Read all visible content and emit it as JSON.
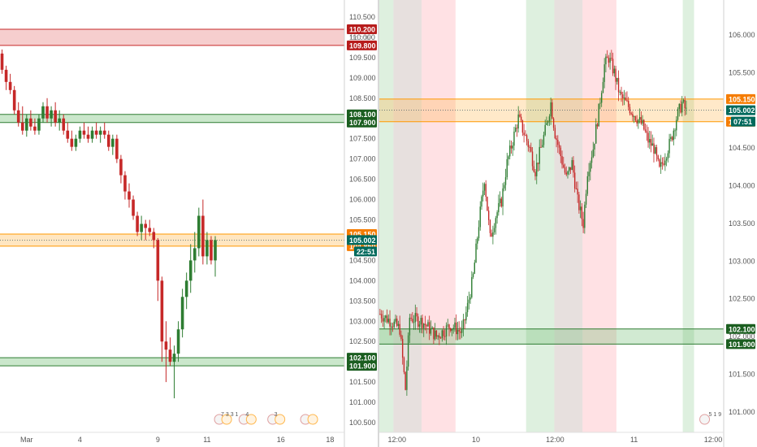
{
  "colors": {
    "bull": "#26a69a",
    "bear": "#ef5350",
    "candle_up": "#2e7d32",
    "candle_down": "#c62828",
    "supply_zone": "#e57373",
    "demand_zone": "#66bb6a",
    "pivot_zone": "#ffb74d",
    "supply_tag": "#b71c1c",
    "demand_tag": "#1b5e20",
    "pivot_tag": "#f57c00",
    "price_tag": "#00695c",
    "session_green": "#c8e6c9",
    "session_red": "#ffcdd2",
    "session_brown": "#d7ccc8",
    "axis_text": "#555555"
  },
  "chart_data": [
    {
      "type": "candlestick",
      "name": "left-panel",
      "y_ticks": [
        "110.500",
        "110.000",
        "109.500",
        "109.000",
        "108.500",
        "108.000",
        "107.500",
        "107.000",
        "106.500",
        "106.000",
        "105.500",
        "105.000",
        "104.500",
        "104.000",
        "103.500",
        "103.000",
        "102.500",
        "102.000",
        "101.500",
        "101.000",
        "100.500"
      ],
      "ylim": [
        100.3,
        110.8
      ],
      "x_ticks": [
        {
          "label": "Mar",
          "i": 6
        },
        {
          "label": "4",
          "i": 19
        },
        {
          "label": "9",
          "i": 38
        },
        {
          "label": "11",
          "i": 50
        },
        {
          "label": "16",
          "i": 68
        },
        {
          "label": "18",
          "i": 80
        }
      ],
      "n_slots": 84,
      "zones": [
        {
          "kind": "supply",
          "top": 110.2,
          "bottom": 109.8,
          "top_label": "110.200",
          "bottom_label": "109.800"
        },
        {
          "kind": "demand",
          "top": 108.1,
          "bottom": 107.9,
          "top_label": "108.100",
          "bottom_label": "107.900"
        },
        {
          "kind": "pivot",
          "top": 105.15,
          "bottom": 104.85,
          "top_label": "105.150",
          "bottom_label": "104.850"
        },
        {
          "kind": "demand",
          "top": 102.1,
          "bottom": 101.9,
          "top_label": "102.100",
          "bottom_label": "101.900"
        }
      ],
      "last_price": {
        "value": 105.002,
        "label": "105.002",
        "countdown": "22:51"
      },
      "faint_label": "110.000",
      "events": [
        {
          "i": 53,
          "text": "7 3 3 1"
        },
        {
          "i": 59,
          "text": "4"
        },
        {
          "i": 66,
          "text": "3"
        },
        {
          "i": 74,
          "text": ""
        }
      ],
      "candles": [
        {
          "o": 109.6,
          "h": 109.7,
          "l": 109.1,
          "c": 109.2
        },
        {
          "o": 109.2,
          "h": 109.3,
          "l": 108.7,
          "c": 108.9
        },
        {
          "o": 108.9,
          "h": 109.1,
          "l": 108.6,
          "c": 108.7
        },
        {
          "o": 108.7,
          "h": 108.8,
          "l": 108.1,
          "c": 108.2
        },
        {
          "o": 108.2,
          "h": 108.4,
          "l": 107.8,
          "c": 107.9
        },
        {
          "o": 107.9,
          "h": 108.3,
          "l": 107.6,
          "c": 107.7
        },
        {
          "o": 107.7,
          "h": 108.1,
          "l": 107.55,
          "c": 108.0
        },
        {
          "o": 108.0,
          "h": 108.2,
          "l": 107.7,
          "c": 107.8
        },
        {
          "o": 107.8,
          "h": 108.0,
          "l": 107.6,
          "c": 107.7
        },
        {
          "o": 107.7,
          "h": 108.1,
          "l": 107.6,
          "c": 108.0
        },
        {
          "o": 108.0,
          "h": 108.4,
          "l": 107.9,
          "c": 108.3
        },
        {
          "o": 108.3,
          "h": 108.5,
          "l": 107.9,
          "c": 108.0
        },
        {
          "o": 108.0,
          "h": 108.3,
          "l": 107.8,
          "c": 108.2
        },
        {
          "o": 108.2,
          "h": 108.4,
          "l": 107.8,
          "c": 107.9
        },
        {
          "o": 107.9,
          "h": 108.2,
          "l": 107.7,
          "c": 108.0
        },
        {
          "o": 108.0,
          "h": 108.1,
          "l": 107.6,
          "c": 107.7
        },
        {
          "o": 107.7,
          "h": 107.9,
          "l": 107.4,
          "c": 107.5
        },
        {
          "o": 107.5,
          "h": 107.7,
          "l": 107.2,
          "c": 107.3
        },
        {
          "o": 107.3,
          "h": 107.6,
          "l": 107.2,
          "c": 107.5
        },
        {
          "o": 107.5,
          "h": 107.8,
          "l": 107.4,
          "c": 107.7
        },
        {
          "o": 107.7,
          "h": 107.9,
          "l": 107.5,
          "c": 107.6
        },
        {
          "o": 107.6,
          "h": 107.8,
          "l": 107.4,
          "c": 107.5
        },
        {
          "o": 107.5,
          "h": 107.8,
          "l": 107.4,
          "c": 107.7
        },
        {
          "o": 107.7,
          "h": 107.9,
          "l": 107.5,
          "c": 107.6
        },
        {
          "o": 107.6,
          "h": 107.8,
          "l": 107.4,
          "c": 107.7
        },
        {
          "o": 107.7,
          "h": 107.9,
          "l": 107.5,
          "c": 107.6
        },
        {
          "o": 107.6,
          "h": 107.7,
          "l": 107.2,
          "c": 107.3
        },
        {
          "o": 107.3,
          "h": 107.6,
          "l": 107.1,
          "c": 107.5
        },
        {
          "o": 107.5,
          "h": 107.6,
          "l": 106.9,
          "c": 107.0
        },
        {
          "o": 107.0,
          "h": 107.1,
          "l": 106.4,
          "c": 106.6
        },
        {
          "o": 106.6,
          "h": 106.7,
          "l": 106.0,
          "c": 106.2
        },
        {
          "o": 106.2,
          "h": 106.4,
          "l": 105.8,
          "c": 106.0
        },
        {
          "o": 106.0,
          "h": 106.1,
          "l": 105.5,
          "c": 105.6
        },
        {
          "o": 105.6,
          "h": 105.7,
          "l": 105.1,
          "c": 105.2
        },
        {
          "o": 105.2,
          "h": 105.6,
          "l": 105.0,
          "c": 105.4
        },
        {
          "o": 105.4,
          "h": 105.5,
          "l": 105.0,
          "c": 105.3
        },
        {
          "o": 105.3,
          "h": 105.5,
          "l": 105.1,
          "c": 105.2
        },
        {
          "o": 105.2,
          "h": 105.3,
          "l": 104.8,
          "c": 105.0
        },
        {
          "o": 105.0,
          "h": 105.05,
          "l": 103.5,
          "c": 104.0
        },
        {
          "o": 104.0,
          "h": 104.1,
          "l": 102.0,
          "c": 102.5
        },
        {
          "o": 102.5,
          "h": 103.0,
          "l": 101.5,
          "c": 102.3
        },
        {
          "o": 102.3,
          "h": 102.6,
          "l": 101.9,
          "c": 102.0
        },
        {
          "o": 102.0,
          "h": 102.4,
          "l": 101.1,
          "c": 102.2
        },
        {
          "o": 102.2,
          "h": 103.0,
          "l": 102.0,
          "c": 102.8
        },
        {
          "o": 102.8,
          "h": 103.8,
          "l": 102.6,
          "c": 103.6
        },
        {
          "o": 103.6,
          "h": 104.2,
          "l": 103.3,
          "c": 104.0
        },
        {
          "o": 104.0,
          "h": 104.9,
          "l": 103.7,
          "c": 104.5
        },
        {
          "o": 104.5,
          "h": 105.2,
          "l": 104.2,
          "c": 104.8
        },
        {
          "o": 104.8,
          "h": 105.8,
          "l": 104.6,
          "c": 105.6
        },
        {
          "o": 105.6,
          "h": 106.0,
          "l": 104.4,
          "c": 104.6
        },
        {
          "o": 104.6,
          "h": 105.2,
          "l": 104.4,
          "c": 105.0
        },
        {
          "o": 105.0,
          "h": 105.1,
          "l": 104.4,
          "c": 104.5
        },
        {
          "o": 104.5,
          "h": 105.1,
          "l": 104.1,
          "c": 105.0
        }
      ]
    },
    {
      "type": "candlestick",
      "name": "right-panel",
      "y_ticks": [
        "106.000",
        "105.500",
        "105.000",
        "104.500",
        "104.000",
        "103.500",
        "103.000",
        "102.500",
        "102.000",
        "101.500",
        "101.000"
      ],
      "ylim": [
        100.75,
        106.4
      ],
      "x_ticks": [
        {
          "label": "12:00",
          "i": 12
        },
        {
          "label": "10",
          "i": 68
        },
        {
          "label": "12:00",
          "i": 124
        },
        {
          "label": "11",
          "i": 180
        },
        {
          "label": "12:00",
          "i": 236
        }
      ],
      "n_slots": 244,
      "sessions": [
        {
          "kind": "green",
          "start": 0,
          "end": 10
        },
        {
          "kind": "brown",
          "start": 10,
          "end": 30
        },
        {
          "kind": "red",
          "start": 30,
          "end": 54
        },
        {
          "kind": "green",
          "start": 104,
          "end": 124
        },
        {
          "kind": "brown",
          "start": 124,
          "end": 144
        },
        {
          "kind": "red",
          "start": 144,
          "end": 168
        },
        {
          "kind": "green",
          "start": 215,
          "end": 223
        }
      ],
      "zones": [
        {
          "kind": "pivot",
          "top": 105.15,
          "bottom": 104.85,
          "top_label": "105.150",
          "bottom_label": "104.850"
        },
        {
          "kind": "demand",
          "top": 102.1,
          "bottom": 101.9,
          "top_label": "102.100",
          "bottom_label": "101.900"
        }
      ],
      "last_price": {
        "value": 105.002,
        "label": "105.002",
        "countdown": "07:51"
      },
      "events": [
        {
          "i": 230,
          "text": "5 1 9"
        }
      ],
      "path": [
        [
          0,
          102.3
        ],
        [
          8,
          102.2
        ],
        [
          14,
          102.1
        ],
        [
          18,
          101.3
        ],
        [
          21,
          102.25
        ],
        [
          30,
          102.2
        ],
        [
          40,
          102.0
        ],
        [
          50,
          102.15
        ],
        [
          58,
          102.05
        ],
        [
          62,
          102.4
        ],
        [
          66,
          102.8
        ],
        [
          70,
          103.5
        ],
        [
          74,
          104.1
        ],
        [
          78,
          103.3
        ],
        [
          82,
          103.6
        ],
        [
          86,
          103.8
        ],
        [
          90,
          104.3
        ],
        [
          94,
          104.6
        ],
        [
          98,
          104.9
        ],
        [
          102,
          104.7
        ],
        [
          106,
          104.5
        ],
        [
          110,
          104.2
        ],
        [
          114,
          104.5
        ],
        [
          118,
          104.8
        ],
        [
          121,
          105.1
        ],
        [
          124,
          104.7
        ],
        [
          128,
          104.4
        ],
        [
          132,
          104.1
        ],
        [
          136,
          104.3
        ],
        [
          140,
          103.8
        ],
        [
          144,
          103.5
        ],
        [
          147,
          104.2
        ],
        [
          151,
          104.5
        ],
        [
          155,
          105.0
        ],
        [
          159,
          105.6
        ],
        [
          162,
          105.7
        ],
        [
          166,
          105.5
        ],
        [
          170,
          105.2
        ],
        [
          174,
          105.1
        ],
        [
          178,
          105.0
        ],
        [
          182,
          104.9
        ],
        [
          186,
          104.8
        ],
        [
          190,
          104.6
        ],
        [
          194,
          104.5
        ],
        [
          198,
          104.2
        ],
        [
          202,
          104.4
        ],
        [
          206,
          104.6
        ],
        [
          210,
          104.9
        ],
        [
          214,
          105.1
        ],
        [
          218,
          104.95
        ]
      ]
    }
  ]
}
